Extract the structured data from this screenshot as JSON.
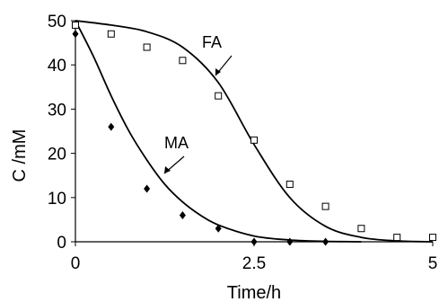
{
  "chart_data": {
    "type": "scatter",
    "xlabel": "Time/h",
    "ylabel": "C /mM",
    "xlim": [
      0,
      5
    ],
    "ylim": [
      0,
      50
    ],
    "x_ticks": [
      "0",
      "2.5",
      "5"
    ],
    "y_ticks": [
      "0",
      "10",
      "20",
      "30",
      "40",
      "50"
    ],
    "grid": false,
    "legend": "none",
    "annotations": [
      "FA",
      "MA"
    ],
    "series": [
      {
        "name": "FA",
        "marker": "open-square",
        "points": [
          [
            0,
            49
          ],
          [
            0.5,
            47
          ],
          [
            1,
            44
          ],
          [
            1.5,
            41
          ],
          [
            2,
            33
          ],
          [
            2.5,
            23
          ],
          [
            3,
            13
          ],
          [
            3.5,
            8
          ],
          [
            4,
            3
          ],
          [
            4.5,
            1
          ],
          [
            5,
            1
          ]
        ],
        "fit": [
          [
            0,
            50
          ],
          [
            0.5,
            49
          ],
          [
            1,
            47.5
          ],
          [
            1.5,
            44
          ],
          [
            2,
            36
          ],
          [
            2.5,
            22
          ],
          [
            3,
            10
          ],
          [
            3.5,
            3.5
          ],
          [
            4,
            1
          ],
          [
            4.5,
            0.2
          ],
          [
            5,
            0
          ]
        ]
      },
      {
        "name": "MA",
        "marker": "filled-diamond",
        "points": [
          [
            0,
            47
          ],
          [
            0.5,
            26
          ],
          [
            1,
            12
          ],
          [
            1.5,
            6
          ],
          [
            2,
            3
          ],
          [
            2.5,
            0
          ],
          [
            3,
            0
          ],
          [
            3.5,
            0
          ]
        ],
        "fit": [
          [
            0,
            50
          ],
          [
            0.25,
            42
          ],
          [
            0.5,
            33
          ],
          [
            0.75,
            25
          ],
          [
            1,
            18.5
          ],
          [
            1.25,
            13
          ],
          [
            1.5,
            9
          ],
          [
            1.75,
            6
          ],
          [
            2,
            3.8
          ],
          [
            2.5,
            1.3
          ],
          [
            3,
            0.4
          ],
          [
            3.5,
            0.1
          ],
          [
            4,
            0
          ]
        ]
      }
    ]
  }
}
